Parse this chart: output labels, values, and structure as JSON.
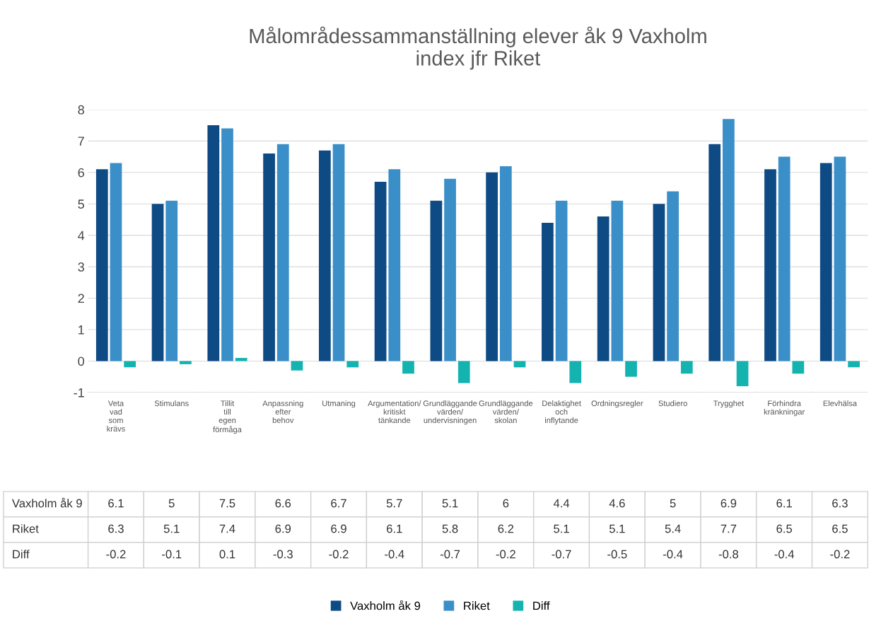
{
  "chart_data": {
    "type": "bar",
    "title": "Målområdessammanställning elever åk 9 Vaxholm\nindex jfr Riket",
    "categories": [
      "Veta vad som krävs",
      "Stimulans",
      "Tillit till egen förmåga",
      "Anpassning efter behov",
      "Utmaning",
      "Argumentation/kritiskt tänkande",
      "Grundläggande värden/undervisningen",
      "Grundläggande värden/skolan",
      "Delaktighet och inflytande",
      "Ordningsregler",
      "Studiero",
      "Trygghet",
      "Förhindra kränkningar",
      "Elevhälsa"
    ],
    "series": [
      {
        "name": "Vaxholm åk 9",
        "color": "#0e4a84",
        "values": [
          6.1,
          5,
          7.5,
          6.6,
          6.7,
          5.7,
          5.1,
          6,
          4.4,
          4.6,
          5,
          6.9,
          6.1,
          6.3
        ]
      },
      {
        "name": "Riket",
        "color": "#3a8fc8",
        "values": [
          6.3,
          5.1,
          7.4,
          6.9,
          6.9,
          6.1,
          5.8,
          6.2,
          5.1,
          5.1,
          5.4,
          7.7,
          6.5,
          6.5
        ]
      },
      {
        "name": "Diff",
        "color": "#15b3b0",
        "values": [
          -0.2,
          -0.1,
          0.1,
          -0.3,
          -0.2,
          -0.4,
          -0.7,
          -0.2,
          -0.7,
          -0.5,
          -0.4,
          -0.8,
          -0.4,
          -0.2
        ]
      }
    ],
    "ylim": [
      -1,
      8
    ],
    "yticks": [
      -1,
      0,
      1,
      2,
      3,
      4,
      5,
      6,
      7,
      8
    ],
    "grid": "y",
    "legend": "bottom",
    "data_labels": true
  }
}
